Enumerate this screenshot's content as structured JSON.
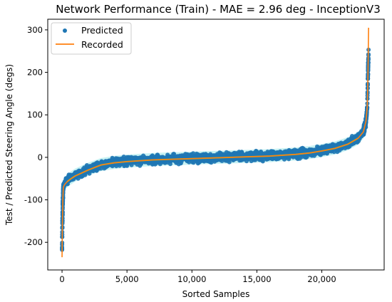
{
  "chart_data": {
    "type": "scatter",
    "title": "Network Performance (Train) - MAE = 2.96 deg - InceptionV3",
    "xlabel": "Sorted Samples",
    "ylabel": "Test / Predicted Steering Angle (degs)",
    "xlim": [
      -1100,
      24800
    ],
    "ylim": [
      -265,
      325
    ],
    "xticks": [
      0,
      5000,
      10000,
      15000,
      20000
    ],
    "xtick_labels": [
      "0",
      "5,000",
      "10,000",
      "15,000",
      "20,000"
    ],
    "yticks": [
      -200,
      -100,
      0,
      100,
      200,
      300
    ],
    "ytick_labels": [
      "-200",
      "-100",
      "0",
      "100",
      "200",
      "300"
    ],
    "grid": false,
    "legend": {
      "position": "top-left",
      "entries": [
        "Predicted",
        "Recorded"
      ]
    },
    "colors": {
      "predicted": "#1f77b4",
      "recorded": "#ff7f0e",
      "band": "#9be8ea",
      "mid_line": "#8fcc3e"
    },
    "series": [
      {
        "name": "Predicted",
        "kind": "scatter",
        "spread_deg": 7,
        "x": [
          0,
          30,
          60,
          100,
          200,
          400,
          700,
          1000,
          1500,
          2000,
          3000,
          4000,
          5000,
          6000,
          7000,
          8000,
          9000,
          10000,
          11000,
          12000,
          13000,
          14000,
          15000,
          16000,
          17000,
          18000,
          19000,
          20000,
          21000,
          22000,
          22800,
          23200,
          23400,
          23500,
          23550,
          23600
        ],
        "y": [
          -215,
          -150,
          -100,
          -68,
          -62,
          -55,
          -48,
          -42,
          -35,
          -28,
          -17,
          -12,
          -9,
          -7,
          -5,
          -4,
          -3,
          -2,
          -1,
          0,
          1,
          2,
          3,
          4,
          6,
          8,
          11,
          16,
          22,
          32,
          45,
          60,
          85,
          120,
          190,
          250
        ]
      },
      {
        "name": "Recorded",
        "kind": "line",
        "x": [
          0,
          30,
          60,
          100,
          200,
          400,
          700,
          1000,
          1500,
          2000,
          3000,
          4000,
          5000,
          6000,
          7000,
          8000,
          9000,
          10000,
          11000,
          12000,
          13000,
          14000,
          15000,
          16000,
          17000,
          18000,
          19000,
          20000,
          21000,
          22000,
          22800,
          23200,
          23400,
          23500,
          23550,
          23600
        ],
        "y": [
          -235,
          -150,
          -100,
          -70,
          -64,
          -57,
          -50,
          -44,
          -37,
          -30,
          -18,
          -13,
          -10,
          -8,
          -6,
          -5,
          -4,
          -3,
          -2,
          -1,
          0,
          1,
          2,
          3,
          5,
          7,
          10,
          15,
          21,
          31,
          45,
          60,
          85,
          120,
          190,
          305
        ]
      }
    ]
  }
}
